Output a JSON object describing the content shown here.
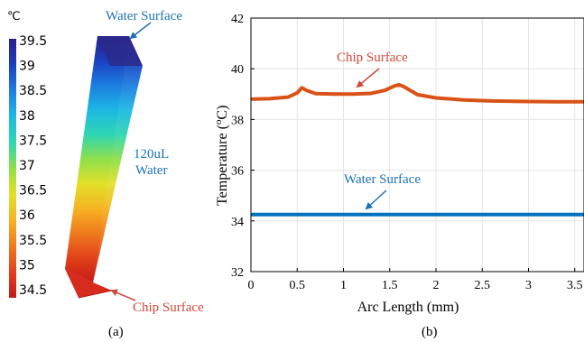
{
  "panel_a": {
    "unit": "℃",
    "colorbar_ticks": [
      "39.5",
      "39",
      "38.5",
      "38",
      "37.5",
      "37",
      "36.5",
      "36",
      "35.5",
      "35",
      "34.5"
    ],
    "colormap": [
      "#2b1c8a",
      "#1b3fbf",
      "#1c7ee0",
      "#1db8e4",
      "#2ed6b3",
      "#8fe04a",
      "#e2e02a",
      "#f6b323",
      "#ef7a1d",
      "#e2411a",
      "#c41b17"
    ],
    "water_label": "120uL\nWater",
    "water_label_line1": "120uL",
    "water_label_line2": "Water",
    "water_surface_label": "Water Surface",
    "chip_surface_label": "Chip Surface",
    "caption": "(a)",
    "colors": {
      "blue_label": "#1a73b8",
      "red_label": "#d04a3b"
    }
  },
  "panel_b": {
    "caption": "(b)",
    "chart_data": {
      "type": "line",
      "xlabel": "Arc Length (mm)",
      "ylabel": "Temperature (oC)",
      "ylabel_main": "Temperature (",
      "ylabel_sup": "o",
      "ylabel_end": "C)",
      "xlim": [
        0,
        3.6
      ],
      "ylim": [
        32,
        42
      ],
      "xticks": [
        0,
        0.5,
        1,
        1.5,
        2,
        2.5,
        3,
        3.5
      ],
      "xtick_labels": [
        "0",
        "0.5",
        "1",
        "1.5",
        "2",
        "2.5",
        "3",
        "3.5"
      ],
      "yticks": [
        32,
        34,
        36,
        38,
        40,
        42
      ],
      "ytick_labels": [
        "32",
        "34",
        "36",
        "38",
        "40",
        "42"
      ],
      "grid": true,
      "series": [
        {
          "color": "#d95319",
          "x": [
            0,
            0.2,
            0.4,
            0.5,
            0.55,
            0.6,
            0.7,
            0.9,
            1.1,
            1.3,
            1.45,
            1.55,
            1.6,
            1.65,
            1.8,
            2.0,
            2.3,
            2.6,
            3.0,
            3.3,
            3.6
          ],
          "y": [
            38.8,
            38.82,
            38.88,
            39.05,
            39.25,
            39.15,
            39.02,
            39.0,
            39.0,
            39.03,
            39.15,
            39.32,
            39.37,
            39.3,
            38.98,
            38.85,
            38.77,
            38.73,
            38.71,
            38.7,
            38.7
          ]
        },
        {
          "color": "#0072bd",
          "x": [
            0,
            3.6
          ],
          "y": [
            34.25,
            34.25
          ]
        }
      ],
      "annotations": [
        {
          "text": "Chip Surface",
          "color": "#d04a3b"
        },
        {
          "text": "Water Surface",
          "color": "#1a73b8"
        }
      ]
    }
  }
}
